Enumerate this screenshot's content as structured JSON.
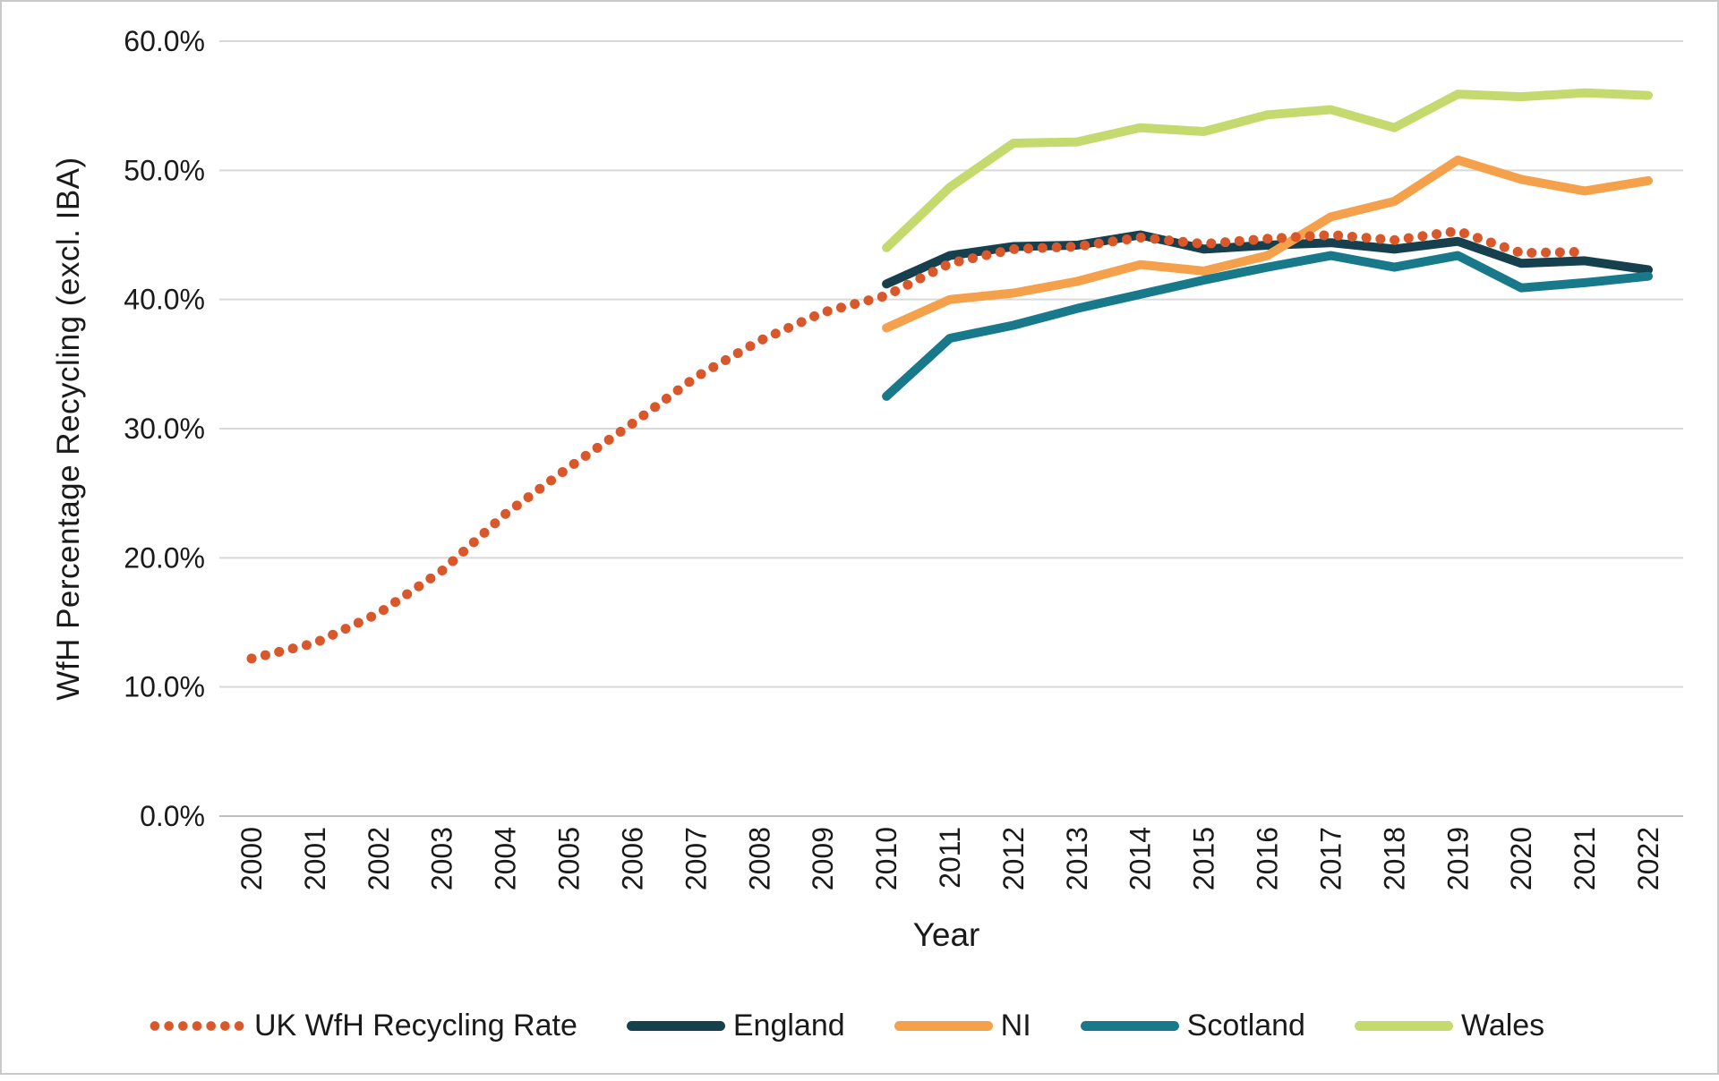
{
  "chart_data": {
    "type": "line",
    "title": "",
    "xlabel": "Year",
    "ylabel": "WfH Percentage Recycling (excl. IBA)",
    "x_tick_labels": [
      2000,
      2001,
      2002,
      2003,
      2004,
      2005,
      2006,
      2007,
      2008,
      2009,
      2010,
      2011,
      2012,
      2013,
      2014,
      2015,
      2016,
      2017,
      2018,
      2019,
      2020,
      2021,
      2022
    ],
    "xlim": [
      2000,
      2022
    ],
    "ylim": [
      0,
      60
    ],
    "ytick_values": [
      0,
      10,
      20,
      30,
      40,
      50,
      60
    ],
    "ytick_labels": [
      "0.0%",
      "10.0%",
      "20.0%",
      "30.0%",
      "40.0%",
      "50.0%",
      "60.0%"
    ],
    "grid": "horizontal",
    "gridline_color": "#D9D9D9",
    "axis_line_color": "#BFBFBF",
    "legend_position": "bottom",
    "series": [
      {
        "name": "UK WfH Recycling Rate",
        "style": "dotted",
        "color": "#D9582B",
        "x": [
          2000,
          2001,
          2002,
          2003,
          2004,
          2005,
          2006,
          2007,
          2008,
          2009,
          2010,
          2011,
          2012,
          2013,
          2014,
          2015,
          2016,
          2017,
          2018,
          2019,
          2020,
          2021
        ],
        "values": [
          12.2,
          13.4,
          15.7,
          19.0,
          23.4,
          27.0,
          30.4,
          34.0,
          36.8,
          39.0,
          40.3,
          42.8,
          43.9,
          44.1,
          44.8,
          44.3,
          44.7,
          45.0,
          44.6,
          45.3,
          43.6,
          43.7
        ]
      },
      {
        "name": "England",
        "style": "solid",
        "color": "#16404E",
        "x": [
          2010,
          2011,
          2012,
          2013,
          2014,
          2015,
          2016,
          2017,
          2018,
          2019,
          2020,
          2021,
          2022
        ],
        "values": [
          41.2,
          43.4,
          44.1,
          44.2,
          45.0,
          43.9,
          44.2,
          44.4,
          43.9,
          44.5,
          42.8,
          43.0,
          42.3
        ]
      },
      {
        "name": "NI",
        "style": "solid",
        "color": "#F5A04B",
        "x": [
          2010,
          2011,
          2012,
          2013,
          2014,
          2015,
          2016,
          2017,
          2018,
          2019,
          2020,
          2021,
          2022
        ],
        "values": [
          37.8,
          40.0,
          40.5,
          41.4,
          42.7,
          42.2,
          43.4,
          46.4,
          47.6,
          50.8,
          49.3,
          48.4,
          49.2
        ]
      },
      {
        "name": "Scotland",
        "style": "solid",
        "color": "#17798A",
        "x": [
          2010,
          2011,
          2012,
          2013,
          2014,
          2015,
          2016,
          2017,
          2018,
          2019,
          2020,
          2021,
          2022
        ],
        "values": [
          32.5,
          37.0,
          38.0,
          39.3,
          40.4,
          41.5,
          42.5,
          43.4,
          42.5,
          43.4,
          40.9,
          41.3,
          41.8
        ]
      },
      {
        "name": "Wales",
        "style": "solid",
        "color": "#C5DA6E",
        "x": [
          2010,
          2011,
          2012,
          2013,
          2014,
          2015,
          2016,
          2017,
          2018,
          2019,
          2020,
          2021,
          2022
        ],
        "values": [
          44.0,
          48.7,
          52.1,
          52.2,
          53.3,
          53.0,
          54.3,
          54.7,
          53.3,
          55.9,
          55.7,
          56.0,
          55.8
        ]
      }
    ]
  }
}
